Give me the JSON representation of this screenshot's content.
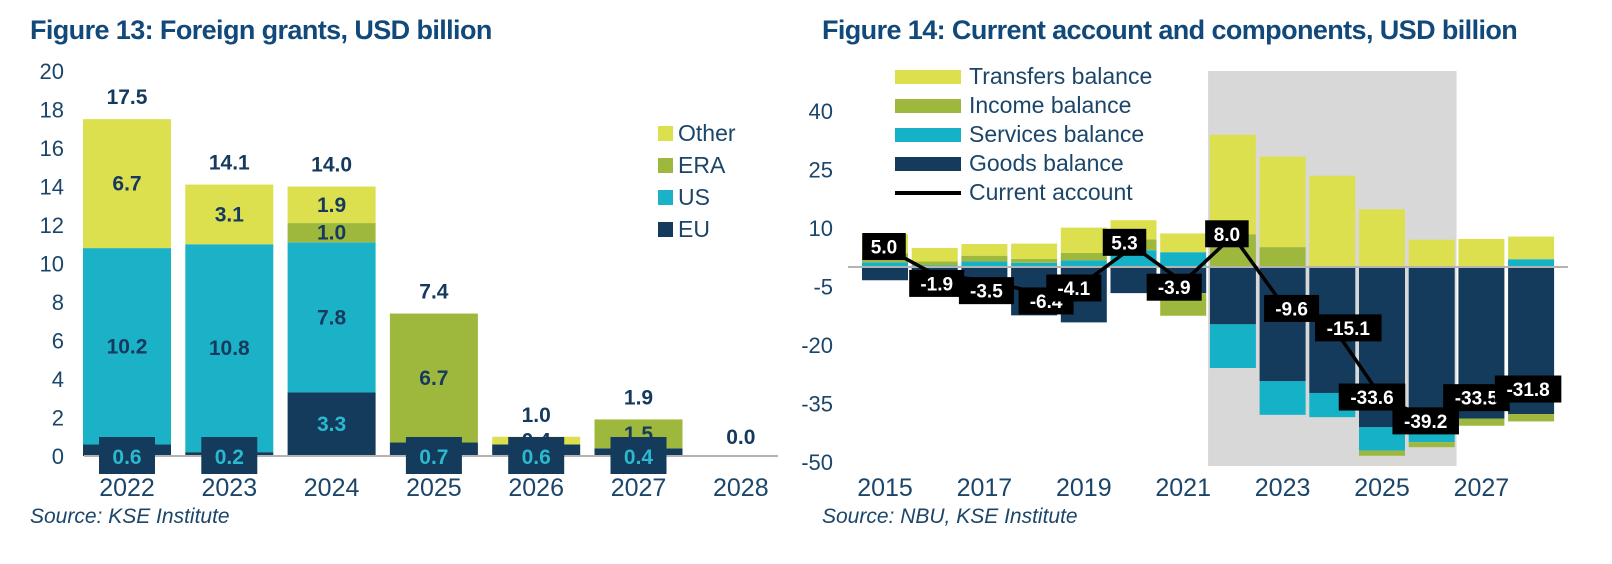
{
  "fig13": {
    "title": "Figure 13: Foreign grants, USD billion",
    "source": "Source: KSE Institute",
    "legend": [
      {
        "label": "Other",
        "color": "#dde04e"
      },
      {
        "label": "ERA",
        "color": "#9eb83d"
      },
      {
        "label": "US",
        "color": "#1bb2c8"
      },
      {
        "label": "EU",
        "color": "#143a5c"
      }
    ],
    "chart_data": {
      "type": "bar",
      "stacked": true,
      "categories": [
        "2022",
        "2023",
        "2024",
        "2025",
        "2026",
        "2027",
        "2028"
      ],
      "series": [
        {
          "name": "EU",
          "color": "#143a5c",
          "values": [
            0.6,
            0.2,
            3.3,
            0.7,
            0.6,
            0.4,
            0
          ]
        },
        {
          "name": "US",
          "color": "#1bb2c8",
          "values": [
            10.2,
            10.8,
            7.8,
            0,
            0,
            0,
            0
          ]
        },
        {
          "name": "ERA",
          "color": "#9eb83d",
          "values": [
            0,
            0,
            1.0,
            6.7,
            0,
            1.5,
            0
          ]
        },
        {
          "name": "Other",
          "color": "#dde04e",
          "values": [
            6.7,
            3.1,
            1.9,
            0,
            0.4,
            0,
            0
          ]
        }
      ],
      "totals": [
        17.5,
        14.1,
        14.0,
        7.4,
        1.0,
        1.9,
        0.0
      ],
      "yticks": [
        0,
        2,
        4,
        6,
        8,
        10,
        12,
        14,
        16,
        18,
        20
      ],
      "ylim": [
        0,
        20
      ],
      "grid": false,
      "legend_position": "right"
    }
  },
  "fig14": {
    "title": "Figure 14: Current account and components, USD billion",
    "source": "Source: NBU, KSE Institute",
    "legend": [
      {
        "label": "Transfers balance",
        "color": "#dde04e"
      },
      {
        "label": "Income balance",
        "color": "#9eb83d"
      },
      {
        "label": "Services balance",
        "color": "#14b1c7"
      },
      {
        "label": "Goods balance",
        "color": "#143a5c"
      },
      {
        "label": "Current account",
        "color": "#000000"
      }
    ],
    "chart_data": {
      "type": "bar",
      "stacked": true,
      "x": [
        2015,
        2016,
        2017,
        2018,
        2019,
        2020,
        2021,
        2022,
        2023,
        2024,
        2025,
        2026,
        2027,
        2028
      ],
      "series": [
        {
          "name": "Transfers balance",
          "color": "#dde04e",
          "values": [
            4.9,
            3.5,
            3.0,
            3.9,
            6.5,
            4.9,
            4.8,
            25.5,
            23.2,
            23.4,
            14.8,
            7.0,
            7.2,
            5.8
          ]
        },
        {
          "name": "Income balance",
          "color": "#9eb83d",
          "values": [
            2.3,
            1.0,
            1.5,
            1.0,
            1.9,
            2.8,
            -5.8,
            8.4,
            5.1,
            0.0,
            -1.3,
            -1.3,
            -1.8,
            -1.9
          ]
        },
        {
          "name": "Services balance",
          "color": "#14b1c7",
          "values": [
            1.2,
            0.4,
            1.4,
            1.1,
            1.7,
            4.3,
            3.8,
            -11.2,
            -8.6,
            -6.2,
            -6.0,
            -3.0,
            0.0,
            2.0
          ]
        },
        {
          "name": "Goods balance",
          "color": "#143a5c",
          "values": [
            -3.4,
            -6.8,
            -9.4,
            -12.4,
            -14.2,
            -6.7,
            -6.7,
            -14.7,
            -29.3,
            -32.3,
            -41.1,
            -41.9,
            -38.9,
            -37.7
          ]
        }
      ],
      "line": {
        "name": "Current account",
        "color": "#000000",
        "values": [
          5.0,
          -1.9,
          -3.5,
          -6.4,
          -4.1,
          5.3,
          -3.9,
          8.0,
          -9.6,
          -15.1,
          -33.6,
          -39.2,
          -33.5,
          -31.8
        ],
        "labels": [
          "5.0",
          "-1.9",
          "-3.5",
          "-6.4",
          "-4.1",
          "5.3",
          "-3.9",
          "8.0",
          "-9.6",
          "-15.1",
          "-33.6",
          "-39.2",
          "-33.5",
          "-31.8"
        ]
      },
      "yticks": [
        40,
        25,
        10,
        -5,
        -20,
        -35,
        -50
      ],
      "xticks": [
        2015,
        2017,
        2019,
        2021,
        2023,
        2025,
        2027
      ],
      "ylim": [
        -50,
        40
      ],
      "grid": false,
      "shaded_region": {
        "x_start": 2021.5,
        "x_end": 2026.5,
        "color": "#d8d8d8"
      },
      "legend_position": "top-left-inside"
    }
  }
}
